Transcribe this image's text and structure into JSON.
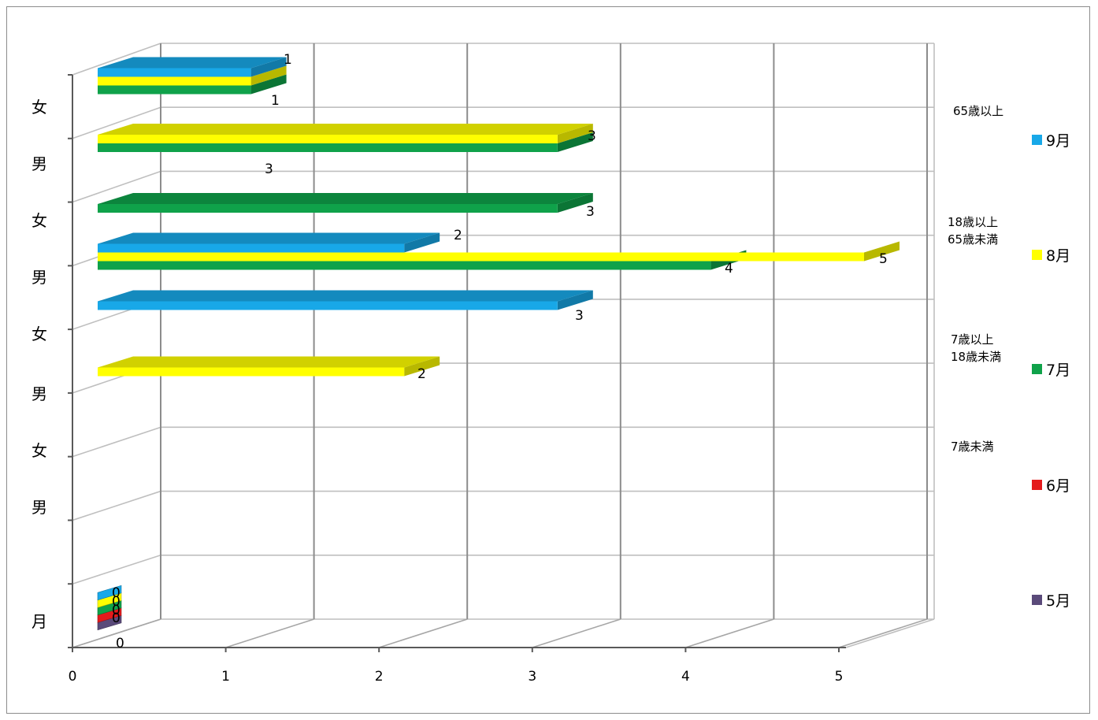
{
  "chart_data": {
    "type": "bar",
    "orientation": "horizontal",
    "style": "3d",
    "xlim": [
      0,
      5
    ],
    "x_ticks": [
      "0",
      "1",
      "2",
      "3",
      "4",
      "5"
    ],
    "categories": [
      "月",
      "男",
      "女",
      "男",
      "女",
      "男",
      "女",
      "男",
      "女"
    ],
    "category_groups": [
      {
        "label": "7歳未満"
      },
      {
        "label": "7歳以上\n18歳未満"
      },
      {
        "label": "18歳以上\n65歳未満"
      },
      {
        "label": "65歳以上"
      }
    ],
    "series": [
      {
        "name": "5月",
        "color": "#5A4A7A",
        "values": [
          0,
          null,
          null,
          null,
          null,
          null,
          null,
          null,
          null
        ]
      },
      {
        "name": "6月",
        "color": "#E41A1C",
        "values": [
          0,
          null,
          null,
          null,
          null,
          null,
          null,
          null,
          null
        ]
      },
      {
        "name": "7月",
        "color": "#0FA24A",
        "values": [
          0,
          null,
          null,
          null,
          null,
          null,
          4,
          3,
          1
        ]
      },
      {
        "name": "8月",
        "color": "#FFFF00",
        "values": [
          0,
          null,
          null,
          2,
          null,
          null,
          5,
          3,
          1
        ]
      },
      {
        "name": "9月",
        "color": "#18A8E8",
        "values": [
          0,
          null,
          null,
          null,
          3,
          null,
          2,
          null,
          1
        ]
      }
    ],
    "legend_position": "right",
    "grid": true
  }
}
